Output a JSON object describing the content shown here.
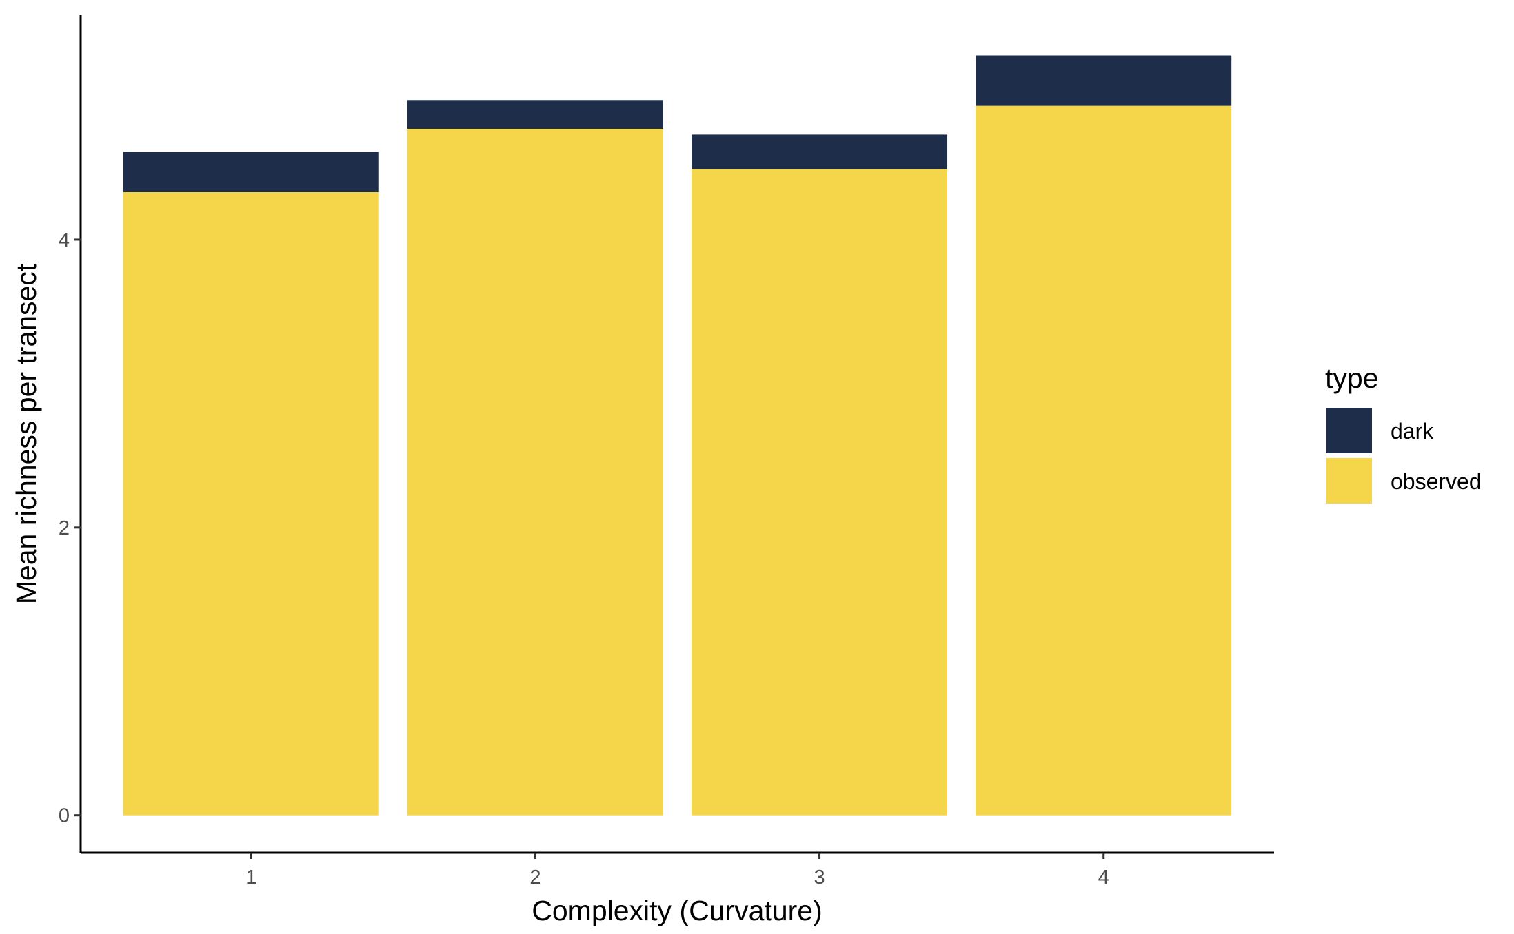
{
  "chart_data": {
    "type": "bar",
    "stacked": true,
    "categories": [
      "1",
      "2",
      "3",
      "4"
    ],
    "series": [
      {
        "name": "observed",
        "values": [
          4.33,
          4.77,
          4.49,
          4.93
        ]
      },
      {
        "name": "dark",
        "values": [
          0.28,
          0.2,
          0.24,
          0.35
        ]
      }
    ],
    "colors": {
      "dark": "#1e2d4a",
      "observed": "#f5d54a"
    },
    "title": "",
    "xlabel": "Complexity (Curvature)",
    "ylabel": "Mean richness per transect",
    "ylim": [
      -0.26,
      5.56
    ],
    "yticks": [
      "0",
      "2",
      "4"
    ],
    "grid": false,
    "legend": {
      "title": "type",
      "position": "right",
      "entries": [
        "dark",
        "observed"
      ]
    }
  }
}
